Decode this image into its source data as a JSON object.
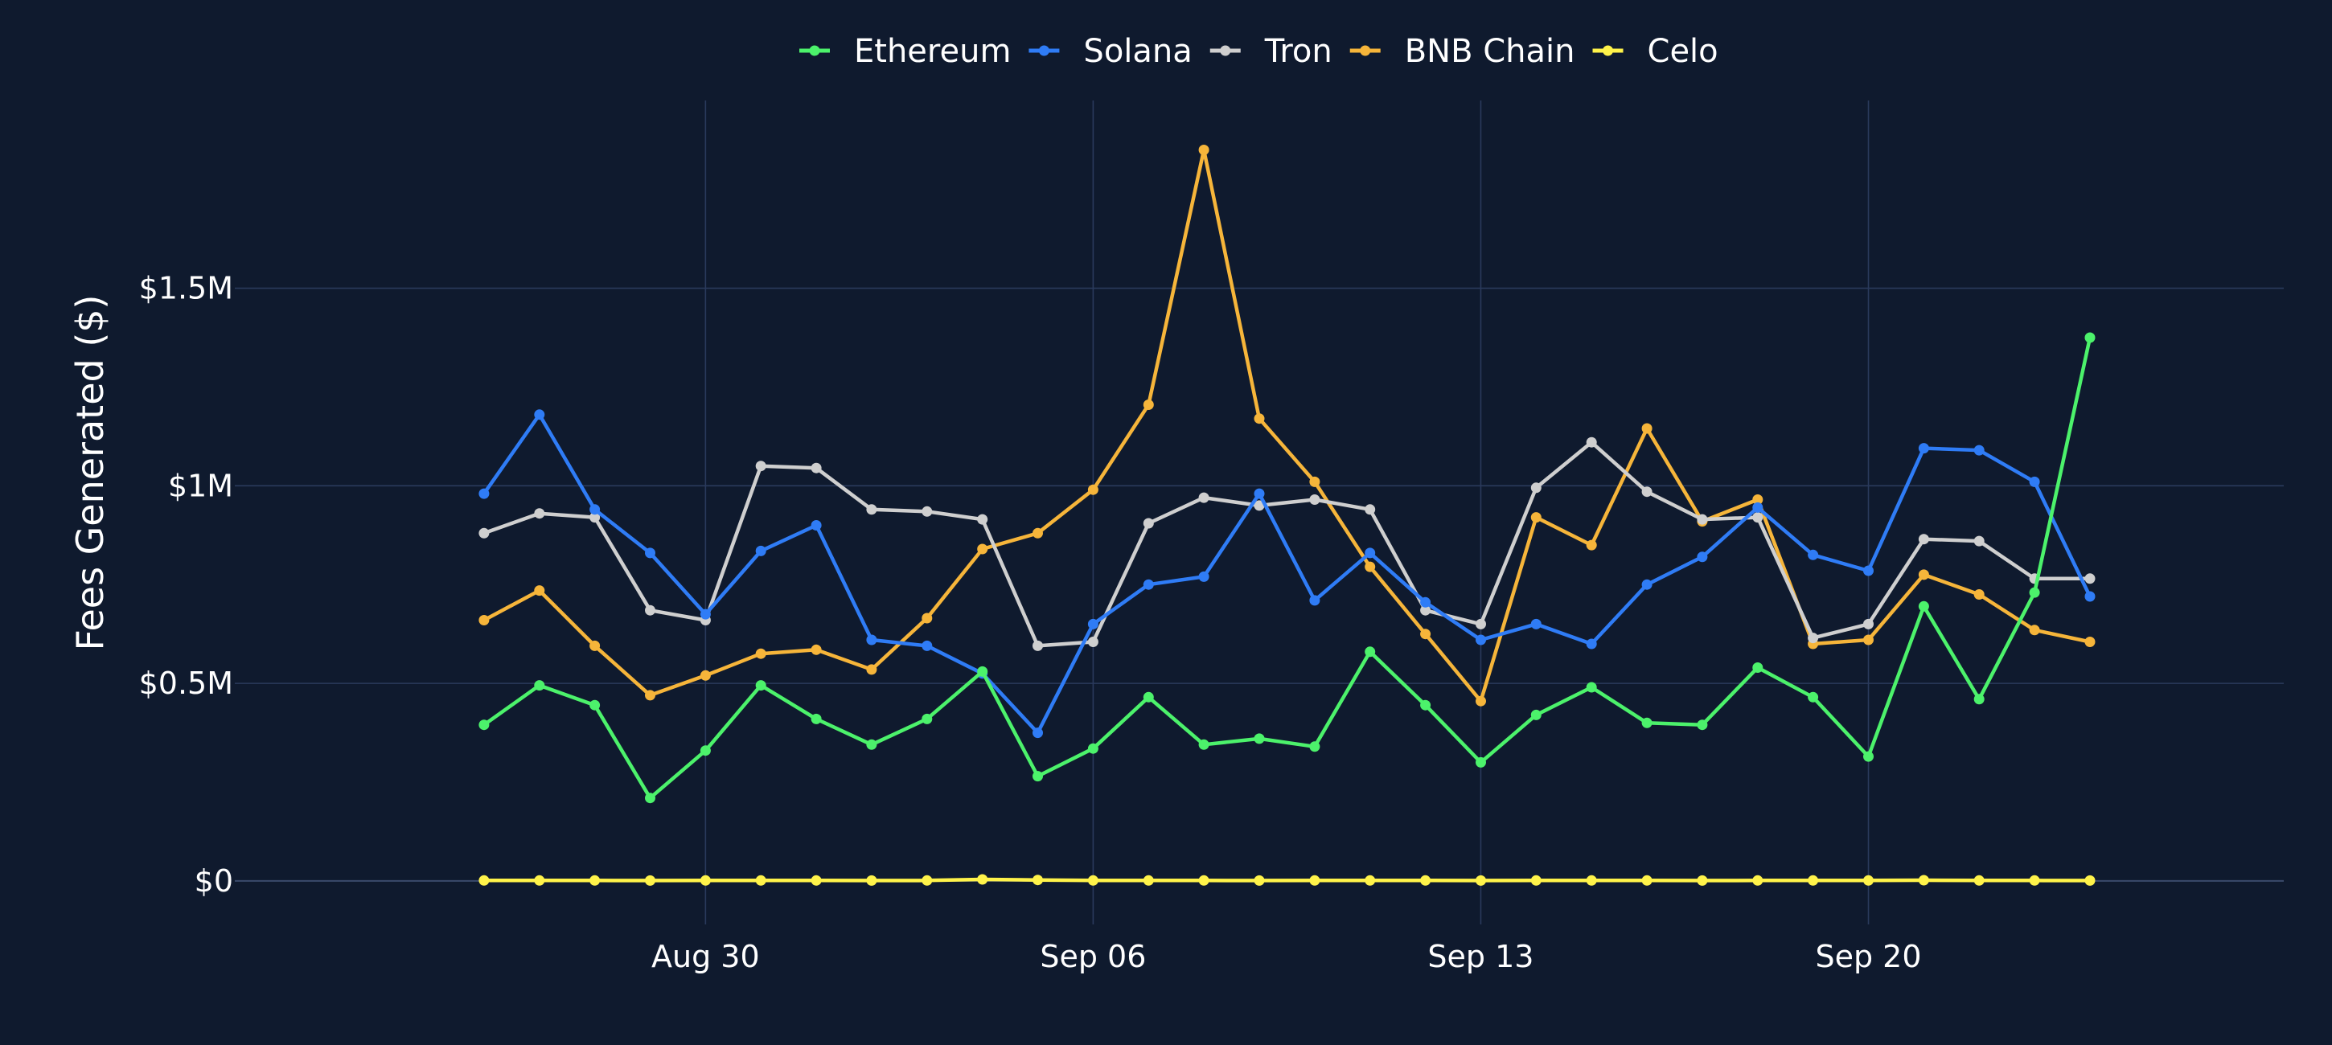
{
  "chart_data": {
    "type": "line",
    "title": "",
    "xlabel": "",
    "ylabel": "Fees Generated ($)",
    "legend": "top-center",
    "grid": true,
    "x": [
      "2024-08-26",
      "2024-08-27",
      "2024-08-28",
      "2024-08-29",
      "2024-08-30",
      "2024-08-31",
      "2024-09-01",
      "2024-09-02",
      "2024-09-03",
      "2024-09-04",
      "2024-09-05",
      "2024-09-06",
      "2024-09-07",
      "2024-09-08",
      "2024-09-09",
      "2024-09-10",
      "2024-09-11",
      "2024-09-12",
      "2024-09-13",
      "2024-09-14",
      "2024-09-15",
      "2024-09-16",
      "2024-09-17",
      "2024-09-18",
      "2024-09-19",
      "2024-09-20",
      "2024-09-21",
      "2024-09-22",
      "2024-09-23",
      "2024-09-24"
    ],
    "x_ticks": [
      {
        "date": "2024-08-30",
        "label": "Aug 30"
      },
      {
        "date": "2024-09-06",
        "label": "Sep 06"
      },
      {
        "date": "2024-09-13",
        "label": "Sep 13"
      },
      {
        "date": "2024-09-20",
        "label": "Sep 20"
      }
    ],
    "y_ticks": [
      {
        "value": 0,
        "label": "$0"
      },
      {
        "value": 500000,
        "label": "$0.5M"
      },
      {
        "value": 1000000,
        "label": "$1M"
      },
      {
        "value": 1500000,
        "label": "$1.5M"
      }
    ],
    "ylim": [
      -110000,
      1975000
    ],
    "xlim": [
      "2024-08-21T12:00",
      "2024-09-27T12:00"
    ],
    "series": [
      {
        "name": "Ethereum",
        "color": "#4cf26b",
        "values": [
          395000,
          495000,
          445000,
          210000,
          330000,
          495000,
          410000,
          345000,
          410000,
          530000,
          265000,
          335000,
          465000,
          345000,
          360000,
          340000,
          580000,
          445000,
          300000,
          420000,
          490000,
          400000,
          395000,
          540000,
          465000,
          315000,
          695000,
          460000,
          730000,
          1375000
        ]
      },
      {
        "name": "Solana",
        "color": "#2f7cf6",
        "values": [
          980000,
          1180000,
          940000,
          830000,
          675000,
          835000,
          900000,
          610000,
          595000,
          525000,
          375000,
          650000,
          750000,
          770000,
          980000,
          710000,
          830000,
          705000,
          610000,
          650000,
          600000,
          750000,
          820000,
          945000,
          825000,
          785000,
          1095000,
          1090000,
          1010000,
          720000
        ]
      },
      {
        "name": "Tron",
        "color": "#cfcfcf",
        "values": [
          880000,
          930000,
          920000,
          685000,
          660000,
          1050000,
          1045000,
          940000,
          935000,
          915000,
          595000,
          605000,
          905000,
          970000,
          950000,
          965000,
          940000,
          685000,
          650000,
          995000,
          1110000,
          985000,
          915000,
          920000,
          615000,
          650000,
          865000,
          860000,
          765000,
          765000
        ]
      },
      {
        "name": "BNB Chain",
        "color": "#f6b53a",
        "values": [
          660000,
          735000,
          595000,
          470000,
          520000,
          575000,
          585000,
          535000,
          665000,
          840000,
          880000,
          990000,
          1205000,
          1850000,
          1170000,
          1010000,
          795000,
          625000,
          455000,
          920000,
          850000,
          1145000,
          910000,
          965000,
          600000,
          610000,
          775000,
          725000,
          635000,
          605000
        ]
      },
      {
        "name": "Celo",
        "color": "#fff34a",
        "values": [
          1200,
          1300,
          1200,
          1100,
          1200,
          1300,
          1200,
          1100,
          1200,
          4000,
          2500,
          1300,
          1200,
          1200,
          1100,
          1200,
          1300,
          1200,
          1100,
          1200,
          1300,
          1200,
          1100,
          1200,
          1300,
          1200,
          1900,
          1300,
          1200,
          1100
        ]
      }
    ]
  }
}
